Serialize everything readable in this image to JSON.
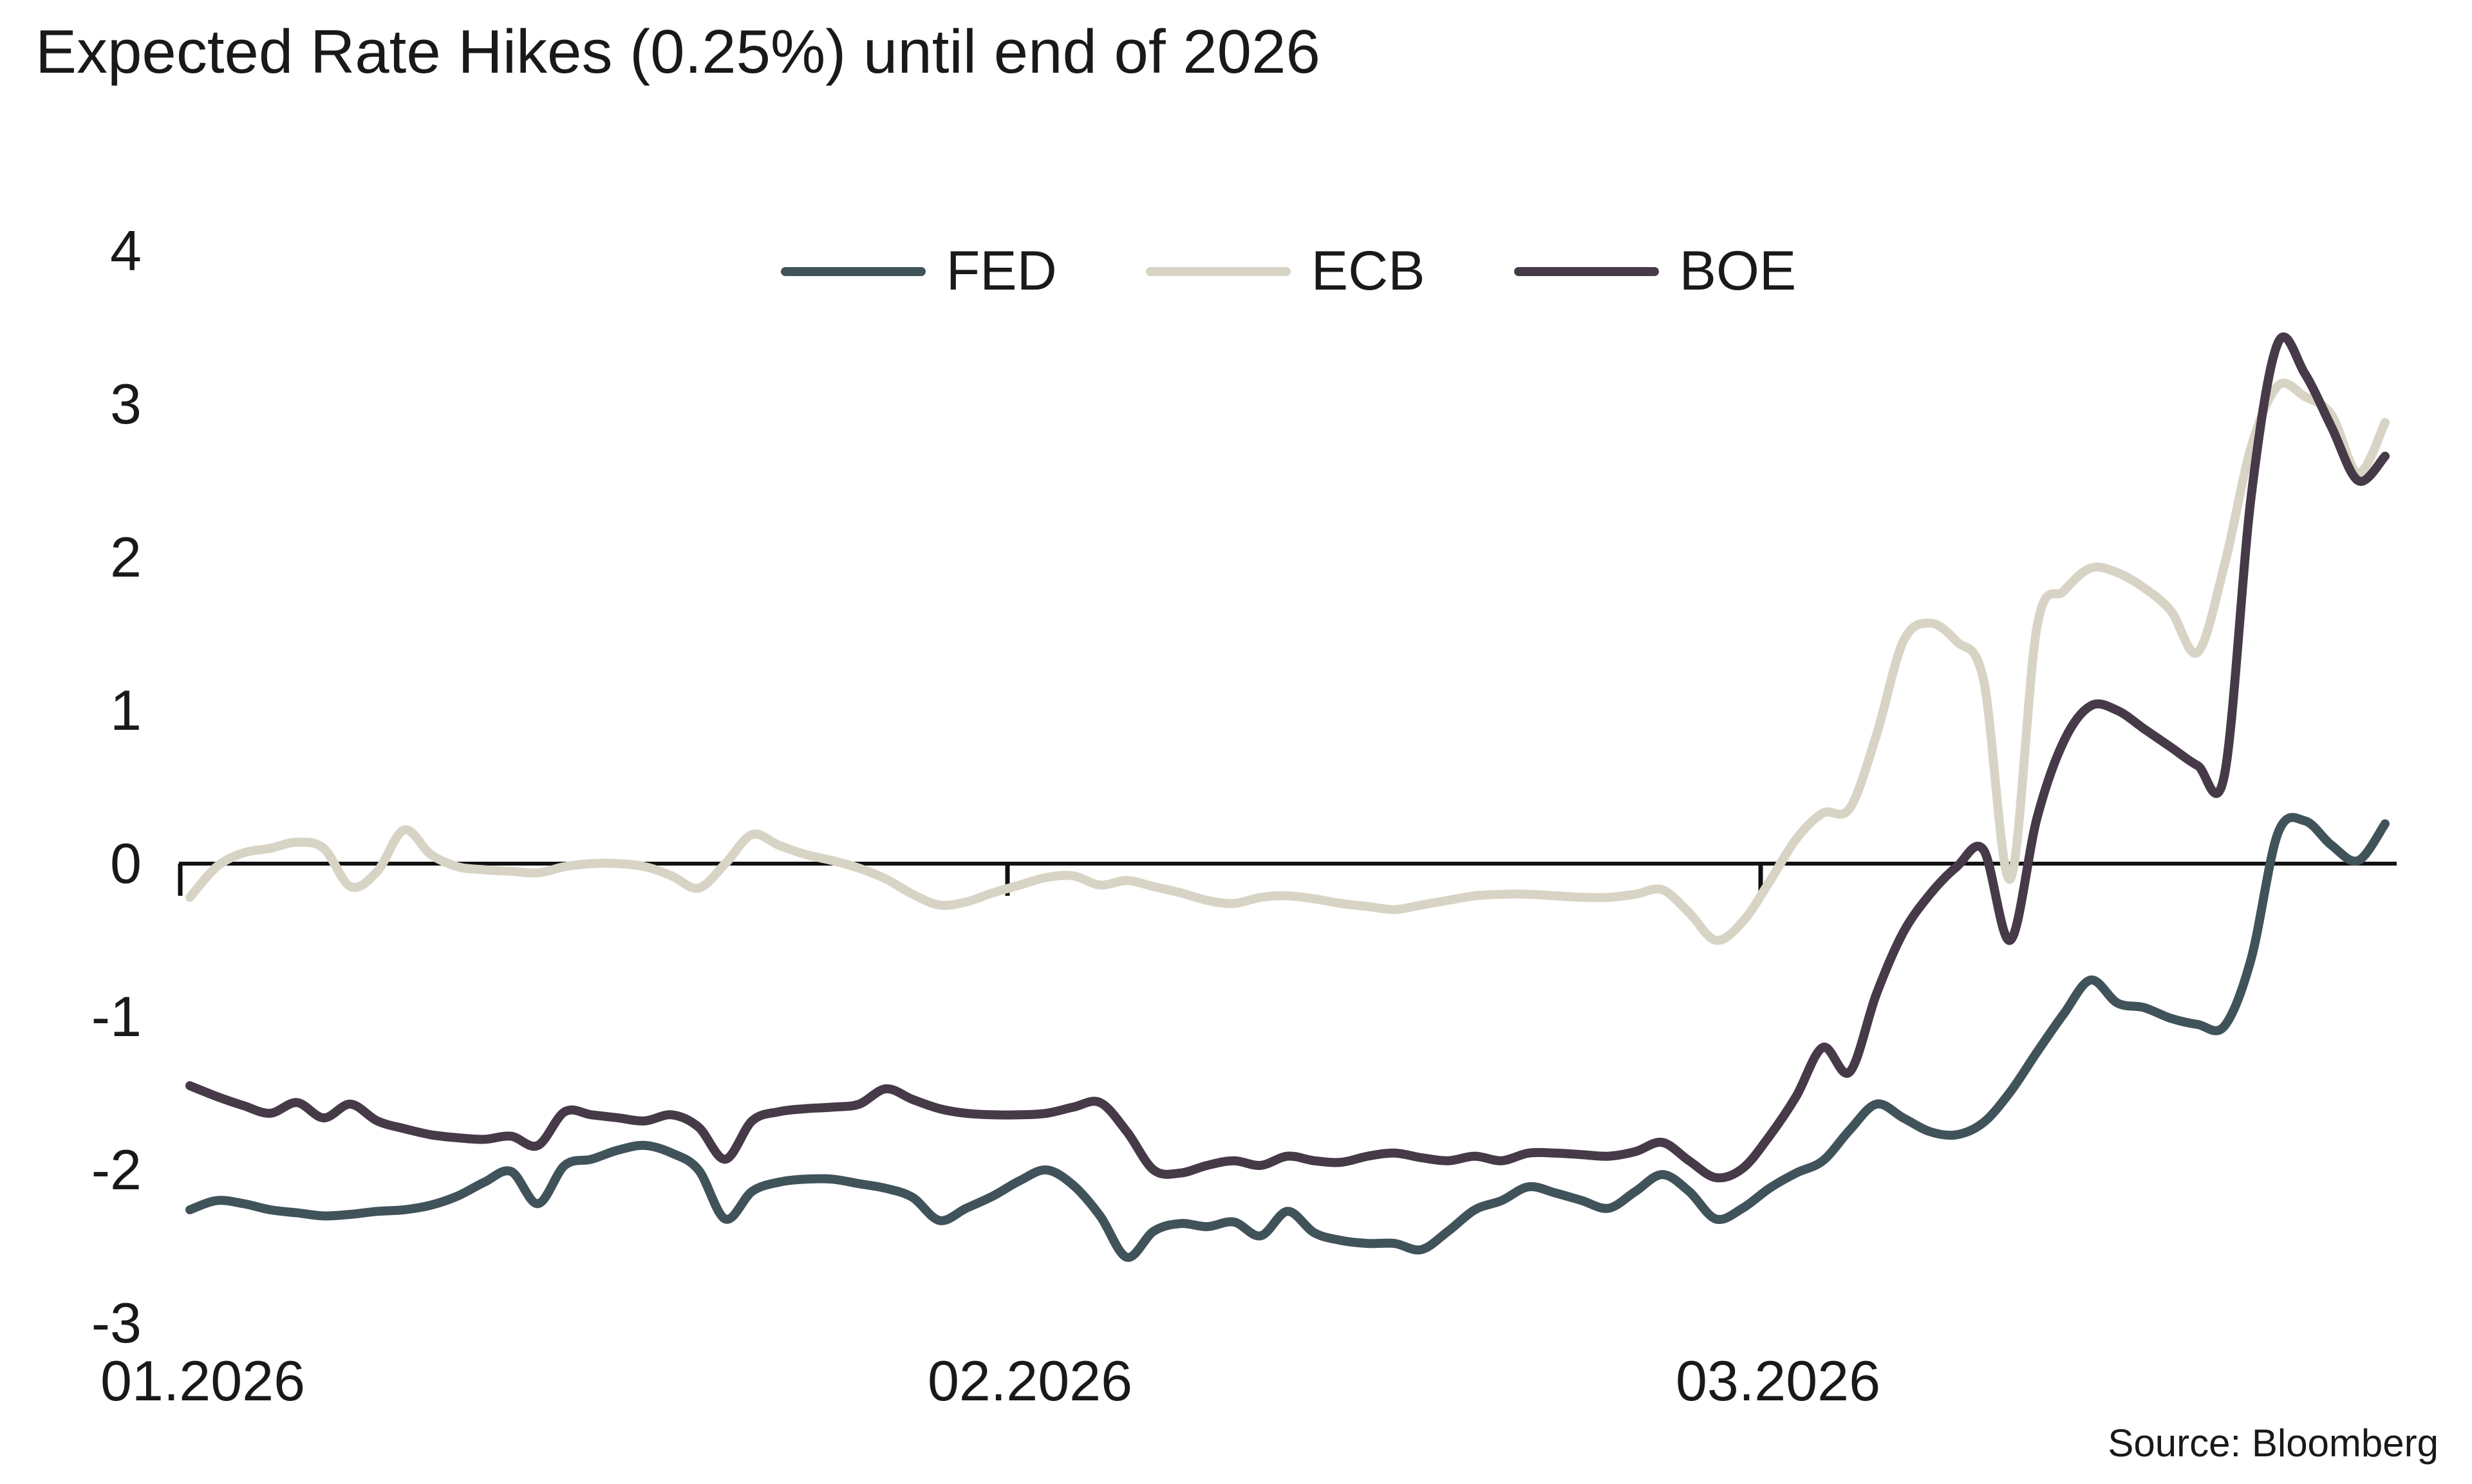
{
  "title": "Expected Rate Hikes (0.25%) until end of 2026",
  "source": "Source: Bloomberg",
  "colors": {
    "fed": "#41535A",
    "ecb": "#D8D4C5",
    "boe": "#463A48",
    "axis": "#111111",
    "text": "#191919"
  },
  "chart_data": {
    "type": "line",
    "title": "Expected Rate Hikes (0.25%) until end of 2026",
    "xlabel": "",
    "ylabel": "",
    "x_unit": "daily observations, 01.2026 - 03.2026",
    "x_tick_labels": [
      "01.2026",
      "02.2026",
      "03.2026"
    ],
    "y_ticks": [
      4,
      3,
      2,
      1,
      0,
      -1,
      -2,
      -3
    ],
    "ylim": [
      -3.35,
      4.3
    ],
    "grid": false,
    "baseline": 0,
    "legend_position": "top-center",
    "series": [
      {
        "name": "FED",
        "color": "#41535A",
        "values": [
          -2.26,
          -2.2,
          -2.22,
          -2.26,
          -2.28,
          -2.3,
          -2.29,
          -2.27,
          -2.26,
          -2.23,
          -2.17,
          -2.08,
          -2.01,
          -2.22,
          -1.97,
          -1.93,
          -1.87,
          -1.84,
          -1.89,
          -2.0,
          -2.32,
          -2.14,
          -2.08,
          -2.06,
          -2.06,
          -2.09,
          -2.12,
          -2.18,
          -2.33,
          -2.25,
          -2.17,
          -2.07,
          -2.0,
          -2.1,
          -2.3,
          -2.57,
          -2.4,
          -2.35,
          -2.37,
          -2.34,
          -2.43,
          -2.27,
          -2.41,
          -2.46,
          -2.48,
          -2.48,
          -2.52,
          -2.4,
          -2.26,
          -2.2,
          -2.11,
          -2.15,
          -2.2,
          -2.25,
          -2.14,
          -2.03,
          -2.14,
          -2.32,
          -2.25,
          -2.12,
          -2.02,
          -1.94,
          -1.74,
          -1.57,
          -1.66,
          -1.75,
          -1.77,
          -1.69,
          -1.49,
          -1.23,
          -0.98,
          -0.76,
          -0.91,
          -0.94,
          -1.01,
          -1.05,
          -1.06,
          -0.62,
          0.2,
          0.28,
          0.12,
          0.02,
          0.26
        ]
      },
      {
        "name": "ECB",
        "color": "#D8D4C5",
        "values": [
          -0.22,
          -0.02,
          0.07,
          0.1,
          0.14,
          0.1,
          -0.15,
          -0.05,
          0.22,
          0.06,
          -0.02,
          -0.04,
          -0.05,
          -0.06,
          -0.02,
          0.0,
          0.0,
          -0.02,
          -0.08,
          -0.16,
          0.0,
          0.19,
          0.12,
          0.06,
          0.02,
          -0.03,
          -0.1,
          -0.2,
          -0.27,
          -0.25,
          -0.19,
          -0.14,
          -0.09,
          -0.08,
          -0.14,
          -0.11,
          -0.15,
          -0.19,
          -0.24,
          -0.26,
          -0.22,
          -0.21,
          -0.23,
          -0.26,
          -0.28,
          -0.3,
          -0.27,
          -0.24,
          -0.21,
          -0.2,
          -0.2,
          -0.21,
          -0.22,
          -0.22,
          -0.2,
          -0.17,
          -0.32,
          -0.5,
          -0.38,
          -0.12,
          0.16,
          0.33,
          0.36,
          0.84,
          1.45,
          1.57,
          1.45,
          1.2,
          -0.1,
          1.55,
          1.78,
          1.93,
          1.9,
          1.8,
          1.65,
          1.38,
          1.95,
          2.72,
          3.12,
          3.05,
          2.93,
          2.55,
          2.88
        ]
      },
      {
        "name": "BOE",
        "color": "#463A48",
        "values": [
          -1.45,
          -1.52,
          -1.58,
          -1.63,
          -1.56,
          -1.66,
          -1.57,
          -1.68,
          -1.73,
          -1.77,
          -1.79,
          -1.8,
          -1.78,
          -1.84,
          -1.62,
          -1.64,
          -1.66,
          -1.68,
          -1.64,
          -1.72,
          -1.93,
          -1.68,
          -1.62,
          -1.6,
          -1.59,
          -1.57,
          -1.47,
          -1.54,
          -1.6,
          -1.63,
          -1.64,
          -1.64,
          -1.63,
          -1.59,
          -1.56,
          -1.75,
          -2.0,
          -2.02,
          -1.97,
          -1.94,
          -1.97,
          -1.91,
          -1.94,
          -1.95,
          -1.91,
          -1.89,
          -1.92,
          -1.94,
          -1.91,
          -1.94,
          -1.89,
          -1.89,
          -1.9,
          -1.91,
          -1.88,
          -1.82,
          -1.94,
          -2.05,
          -1.99,
          -1.78,
          -1.52,
          -1.2,
          -1.36,
          -0.85,
          -0.45,
          -0.2,
          -0.02,
          0.09,
          -0.5,
          0.3,
          0.8,
          1.03,
          1.0,
          0.88,
          0.76,
          0.64,
          0.58,
          2.4,
          3.4,
          3.2,
          2.85,
          2.5,
          2.66
        ]
      }
    ]
  },
  "legend": [
    {
      "label": "FED",
      "color": "#41535A"
    },
    {
      "label": "ECB",
      "color": "#D8D4C5"
    },
    {
      "label": "BOE",
      "color": "#463A48"
    }
  ]
}
